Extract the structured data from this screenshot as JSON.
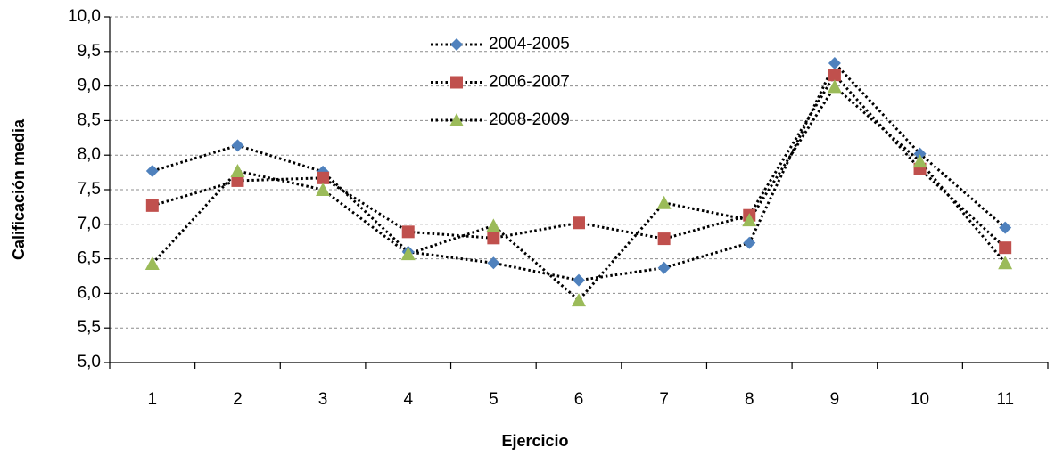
{
  "chart_data": {
    "type": "line",
    "x_label": "Ejercicio",
    "y_label": "Calificación media",
    "categories": [
      "1",
      "2",
      "3",
      "4",
      "5",
      "6",
      "7",
      "8",
      "9",
      "10",
      "11"
    ],
    "series": [
      {
        "name": "2004-2005",
        "color": "#4f81bd",
        "marker": "diamond",
        "values": [
          7.77,
          8.14,
          7.76,
          6.6,
          6.44,
          6.19,
          6.37,
          6.73,
          9.33,
          8.02,
          6.95
        ]
      },
      {
        "name": "2006-2007",
        "color": "#c0504d",
        "marker": "square",
        "values": [
          7.27,
          7.63,
          7.67,
          6.89,
          6.8,
          7.02,
          6.79,
          7.13,
          9.16,
          7.8,
          6.66
        ]
      },
      {
        "name": "2008-2009",
        "color": "#9bbb59",
        "marker": "triangle",
        "values": [
          6.43,
          7.77,
          7.5,
          6.57,
          6.98,
          5.9,
          7.31,
          7.06,
          8.99,
          7.91,
          6.44
        ]
      }
    ],
    "ylim": [
      5,
      10
    ],
    "yticks": [
      {
        "value": 5,
        "label": "5,0"
      },
      {
        "value": 5.5,
        "label": "5,5"
      },
      {
        "value": 6,
        "label": "6,0"
      },
      {
        "value": 6.5,
        "label": "6,5"
      },
      {
        "value": 7,
        "label": "7,0"
      },
      {
        "value": 7.5,
        "label": "7,5"
      },
      {
        "value": 8,
        "label": "8,0"
      },
      {
        "value": 8.5,
        "label": "8,5"
      },
      {
        "value": 9,
        "label": "9,0"
      },
      {
        "value": 9.5,
        "label": "9,5"
      },
      {
        "value": 10,
        "label": "10,0"
      }
    ],
    "grid": true
  }
}
